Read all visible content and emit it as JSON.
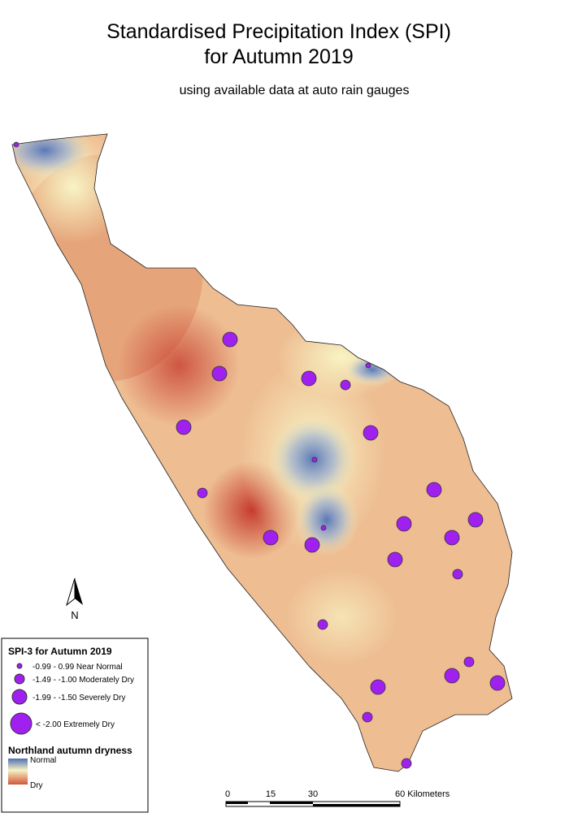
{
  "header": {
    "title_line1": "Standardised Precipitation Index (SPI)",
    "title_line2": "for Autumn 2019",
    "subtitle": "using available data at auto rain gauges"
  },
  "north_arrow": {
    "label": "N"
  },
  "legend": {
    "title": "SPI-3 for Autumn 2019",
    "items": [
      "-0.99 - 0.99  Near Normal",
      "-1.49 - -1.00  Moderately Dry",
      "-1.99 - -1.50  Severely Dry",
      "< -2.00  Extremely Dry"
    ],
    "surface_title": "Northland autumn dryness",
    "surface_high": "Normal",
    "surface_low": "Dry"
  },
  "scale_bar": {
    "labels": [
      "0",
      "15",
      "30",
      "60 Kilometers"
    ]
  }
}
